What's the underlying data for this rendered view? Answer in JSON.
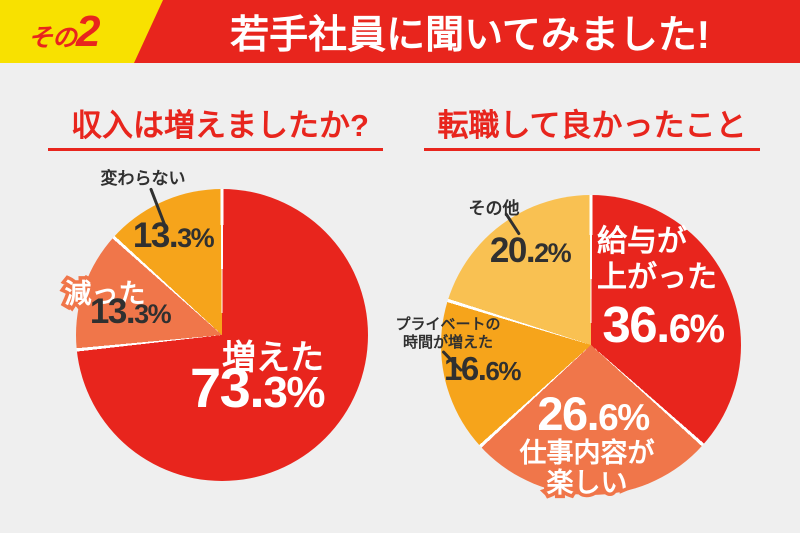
{
  "header": {
    "badge_prefix": "その",
    "badge_number": "2",
    "title": "若手社員に聞いてみました!"
  },
  "colors": {
    "header_red": "#e8251d",
    "badge_yellow": "#f8e100",
    "background": "#efefef",
    "pie_red": "#e8251d",
    "pie_orange_red": "#f0764a",
    "pie_orange": "#f6a41b",
    "pie_light_orange": "#f9c152",
    "text_dark": "#303030",
    "text_white": "#ffffff"
  },
  "chart_data": [
    {
      "type": "pie",
      "title": "収入は増えましたか?",
      "start_angle": "12-oclock, clockwise",
      "slice_separator": "white 3px",
      "slices": [
        {
          "label": "増えた",
          "value": 73.3,
          "pct_big": "73.",
          "pct_small": "3%",
          "color": "#e8251d",
          "label_color": "#ffffff",
          "label_position": "inside"
        },
        {
          "label": "減った",
          "value": 13.3,
          "pct_big": "13.",
          "pct_small": "3%",
          "color": "#f0764a",
          "label_color": "#303030",
          "label_position": "on-edge outlined"
        },
        {
          "label": "変わらない",
          "value": 13.3,
          "pct_big": "13.",
          "pct_small": "3%",
          "color": "#f6a41b",
          "label_color": "#303030",
          "label_position": "callout"
        }
      ]
    },
    {
      "type": "pie",
      "title": "転職して良かったこと",
      "start_angle": "12-oclock, clockwise",
      "slice_separator": "white 3px",
      "slices": [
        {
          "label": "給与が上がった",
          "label_line1": "給与が",
          "label_line2": "上がった",
          "value": 36.6,
          "pct_big": "36.",
          "pct_small": "6%",
          "color": "#e8251d",
          "label_color": "#ffffff",
          "label_position": "inside"
        },
        {
          "label": "仕事内容が楽しい",
          "label_line1": "仕事内容が",
          "label_line2": "楽しい",
          "value": 26.6,
          "pct_big": "26.",
          "pct_small": "6%",
          "color": "#f0764a",
          "label_color": "#ffffff",
          "label_position": "inside, name outlined below"
        },
        {
          "label": "プライベートの時間が増えた",
          "label_line1": "プライベートの",
          "label_line2": "時間が増えた",
          "value": 16.6,
          "pct_big": "16.",
          "pct_small": "6%",
          "color": "#f6a41b",
          "label_color": "#303030",
          "label_position": "callout"
        },
        {
          "label": "その他",
          "value": 20.2,
          "pct_big": "20.",
          "pct_small": "2%",
          "color": "#f9c152",
          "label_color": "#303030",
          "label_position": "callout"
        }
      ]
    }
  ]
}
